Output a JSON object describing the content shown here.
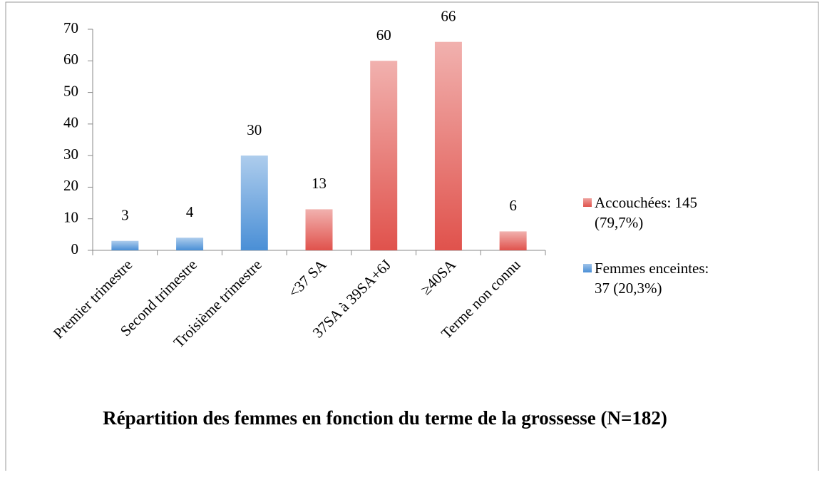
{
  "chart_data": {
    "type": "bar",
    "title": "Répartition des femmes en fonction du terme de la grossesse (N=182)",
    "categories": [
      "Premier trimestre",
      "Second trimestre",
      "Troisième trimestre",
      "<37 SA",
      "37SA à 39SA+6J",
      "≥40SA",
      "Terme non connu"
    ],
    "series": [
      {
        "name": "Femmes enceintes: 37 (20,3%)",
        "color": "#4a8fd6",
        "values": [
          3,
          4,
          30,
          null,
          null,
          null,
          null
        ]
      },
      {
        "name": "Accouchées: 145 (79,7%)",
        "color": "#e0524c",
        "values": [
          null,
          null,
          null,
          13,
          60,
          66,
          6
        ]
      }
    ],
    "ylim": [
      0,
      70
    ],
    "yticks": [
      0,
      10,
      20,
      30,
      40,
      50,
      60,
      70
    ],
    "legend": "right",
    "data_labels": true
  }
}
